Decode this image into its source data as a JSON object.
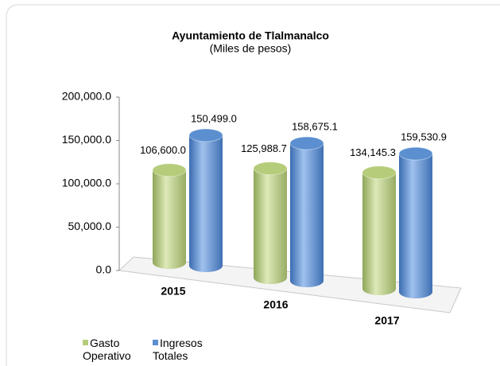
{
  "chart_data": {
    "type": "bar",
    "title": "Ayuntamiento de Tlalmanalco",
    "subtitle": "(Miles de pesos)",
    "categories": [
      "2015",
      "2016",
      "2017"
    ],
    "series": [
      {
        "name": "Gasto Operativo",
        "color": "#b5cc7a",
        "values": [
          106600.0,
          125988.7,
          134145.3
        ],
        "value_labels": [
          "106,600.0",
          "125,988.7",
          "134,145.3"
        ]
      },
      {
        "name": "Ingresos Totales",
        "color": "#5b8fd0",
        "values": [
          150499.0,
          158675.1,
          159530.9
        ],
        "value_labels": [
          "150,499.0",
          "158,675.1",
          "159,530.9"
        ]
      }
    ],
    "ylim": [
      0,
      200000
    ],
    "yticks": [
      {
        "value": 0,
        "label": "0.0"
      },
      {
        "value": 50000,
        "label": "50,000.0"
      },
      {
        "value": 100000,
        "label": "100,000.0"
      },
      {
        "value": 150000,
        "label": "150,000.0"
      },
      {
        "value": 200000,
        "label": "200,000.0"
      }
    ],
    "legend": "bottom-left",
    "grid": false
  }
}
